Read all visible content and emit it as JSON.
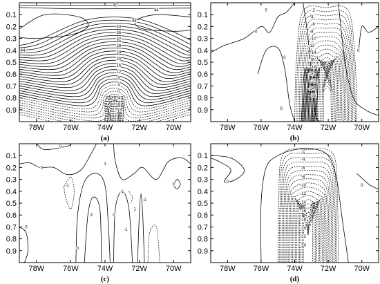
{
  "chart_data": [
    {
      "type": "contour",
      "panel_label": "(a)",
      "x_ticks": [
        "78W",
        "76W",
        "74W",
        "72W",
        "70W"
      ],
      "y_ticks": [
        "0.1",
        "0.2",
        "0.3",
        "0.4",
        "0.5",
        "0.6",
        "0.7",
        "0.8",
        "0.9"
      ],
      "contour_labels": [
        "40",
        "44",
        "44",
        "44",
        "40",
        "36",
        "32",
        "28",
        "24",
        "20",
        "16",
        "12",
        "8",
        "4",
        "0",
        "-4",
        "-8",
        "-12"
      ],
      "negative_dashed": true
    },
    {
      "type": "contour",
      "panel_label": "(b)",
      "x_ticks": [
        "78W",
        "76W",
        "74W",
        "72W",
        "70W"
      ],
      "y_ticks": [
        "0.1",
        "0.2",
        "0.3",
        "0.4",
        "0.5",
        "0.6",
        "0.7",
        "0.8",
        "0.9"
      ],
      "contour_labels": [
        "0",
        "0",
        "0",
        "0",
        "0",
        "-2",
        "-4",
        "-6",
        "-8",
        "-10",
        "-12",
        "-14",
        "-16",
        "-18",
        "-20",
        "-22",
        "-24",
        "-26"
      ],
      "negative_dashed": true
    },
    {
      "type": "contour",
      "panel_label": "(c)",
      "x_ticks": [
        "78W",
        "76W",
        "74W",
        "72W",
        "70W"
      ],
      "y_ticks": [
        "0.1",
        "0.2",
        "0.3",
        "0.4",
        "0.5",
        "0.6",
        "0.7",
        "0.8",
        "0.9"
      ],
      "contour_labels": [
        "0",
        "0",
        "-1",
        "1",
        "-1",
        "-1",
        "0",
        "0",
        "0",
        "-1",
        "0",
        "3",
        "-1"
      ],
      "negative_dashed": true
    },
    {
      "type": "contour",
      "panel_label": "(d)",
      "x_ticks": [
        "78W",
        "76W",
        "74W",
        "72W",
        "70W"
      ],
      "y_ticks": [
        "0.1",
        "0.2",
        "0.3",
        "0.4",
        "0.5",
        "0.6",
        "0.7",
        "0.8",
        "0.9"
      ],
      "contour_labels": [
        "-2",
        "-4",
        "-6",
        "-8",
        "-10",
        "-12",
        "-14",
        "-16",
        "-18",
        "-20",
        "-22",
        "-24",
        "0",
        "0"
      ],
      "negative_dashed": true
    }
  ]
}
